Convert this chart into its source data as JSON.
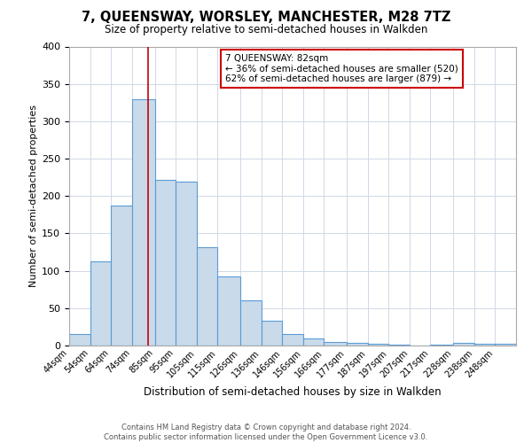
{
  "title": "7, QUEENSWAY, WORSLEY, MANCHESTER, M28 7TZ",
  "subtitle": "Size of property relative to semi-detached houses in Walkden",
  "xlabel": "Distribution of semi-detached houses by size in Walkden",
  "ylabel": "Number of semi-detached properties",
  "bar_labels": [
    "44sqm",
    "54sqm",
    "64sqm",
    "74sqm",
    "85sqm",
    "95sqm",
    "105sqm",
    "115sqm",
    "126sqm",
    "136sqm",
    "146sqm",
    "156sqm",
    "166sqm",
    "177sqm",
    "187sqm",
    "197sqm",
    "207sqm",
    "217sqm",
    "228sqm",
    "238sqm",
    "248sqm"
  ],
  "bar_values": [
    15,
    113,
    187,
    330,
    222,
    219,
    131,
    92,
    61,
    33,
    15,
    9,
    5,
    3,
    2,
    1,
    0,
    1,
    3,
    2,
    2
  ],
  "bar_color": "#c9daea",
  "bar_edge_color": "#5b9bd5",
  "vline_x": 82,
  "vline_color": "#cc0000",
  "annotation_title": "7 QUEENSWAY: 82sqm",
  "annotation_line1": "← 36% of semi-detached houses are smaller (520)",
  "annotation_line2": "62% of semi-detached houses are larger (879) →",
  "annotation_box_color": "#ffffff",
  "annotation_box_edge": "#cc0000",
  "ylim": [
    0,
    400
  ],
  "yticks": [
    0,
    50,
    100,
    150,
    200,
    250,
    300,
    350,
    400
  ],
  "footer_line1": "Contains HM Land Registry data © Crown copyright and database right 2024.",
  "footer_line2": "Contains public sector information licensed under the Open Government Licence v3.0.",
  "background_color": "#ffffff",
  "grid_color": "#d0d8e8",
  "bin_edges_left": [
    44,
    54,
    64,
    74,
    85,
    95,
    105,
    115,
    126,
    136,
    146,
    156,
    166,
    177,
    187,
    197,
    207,
    217,
    228,
    238,
    248
  ],
  "xlim_right": 258
}
